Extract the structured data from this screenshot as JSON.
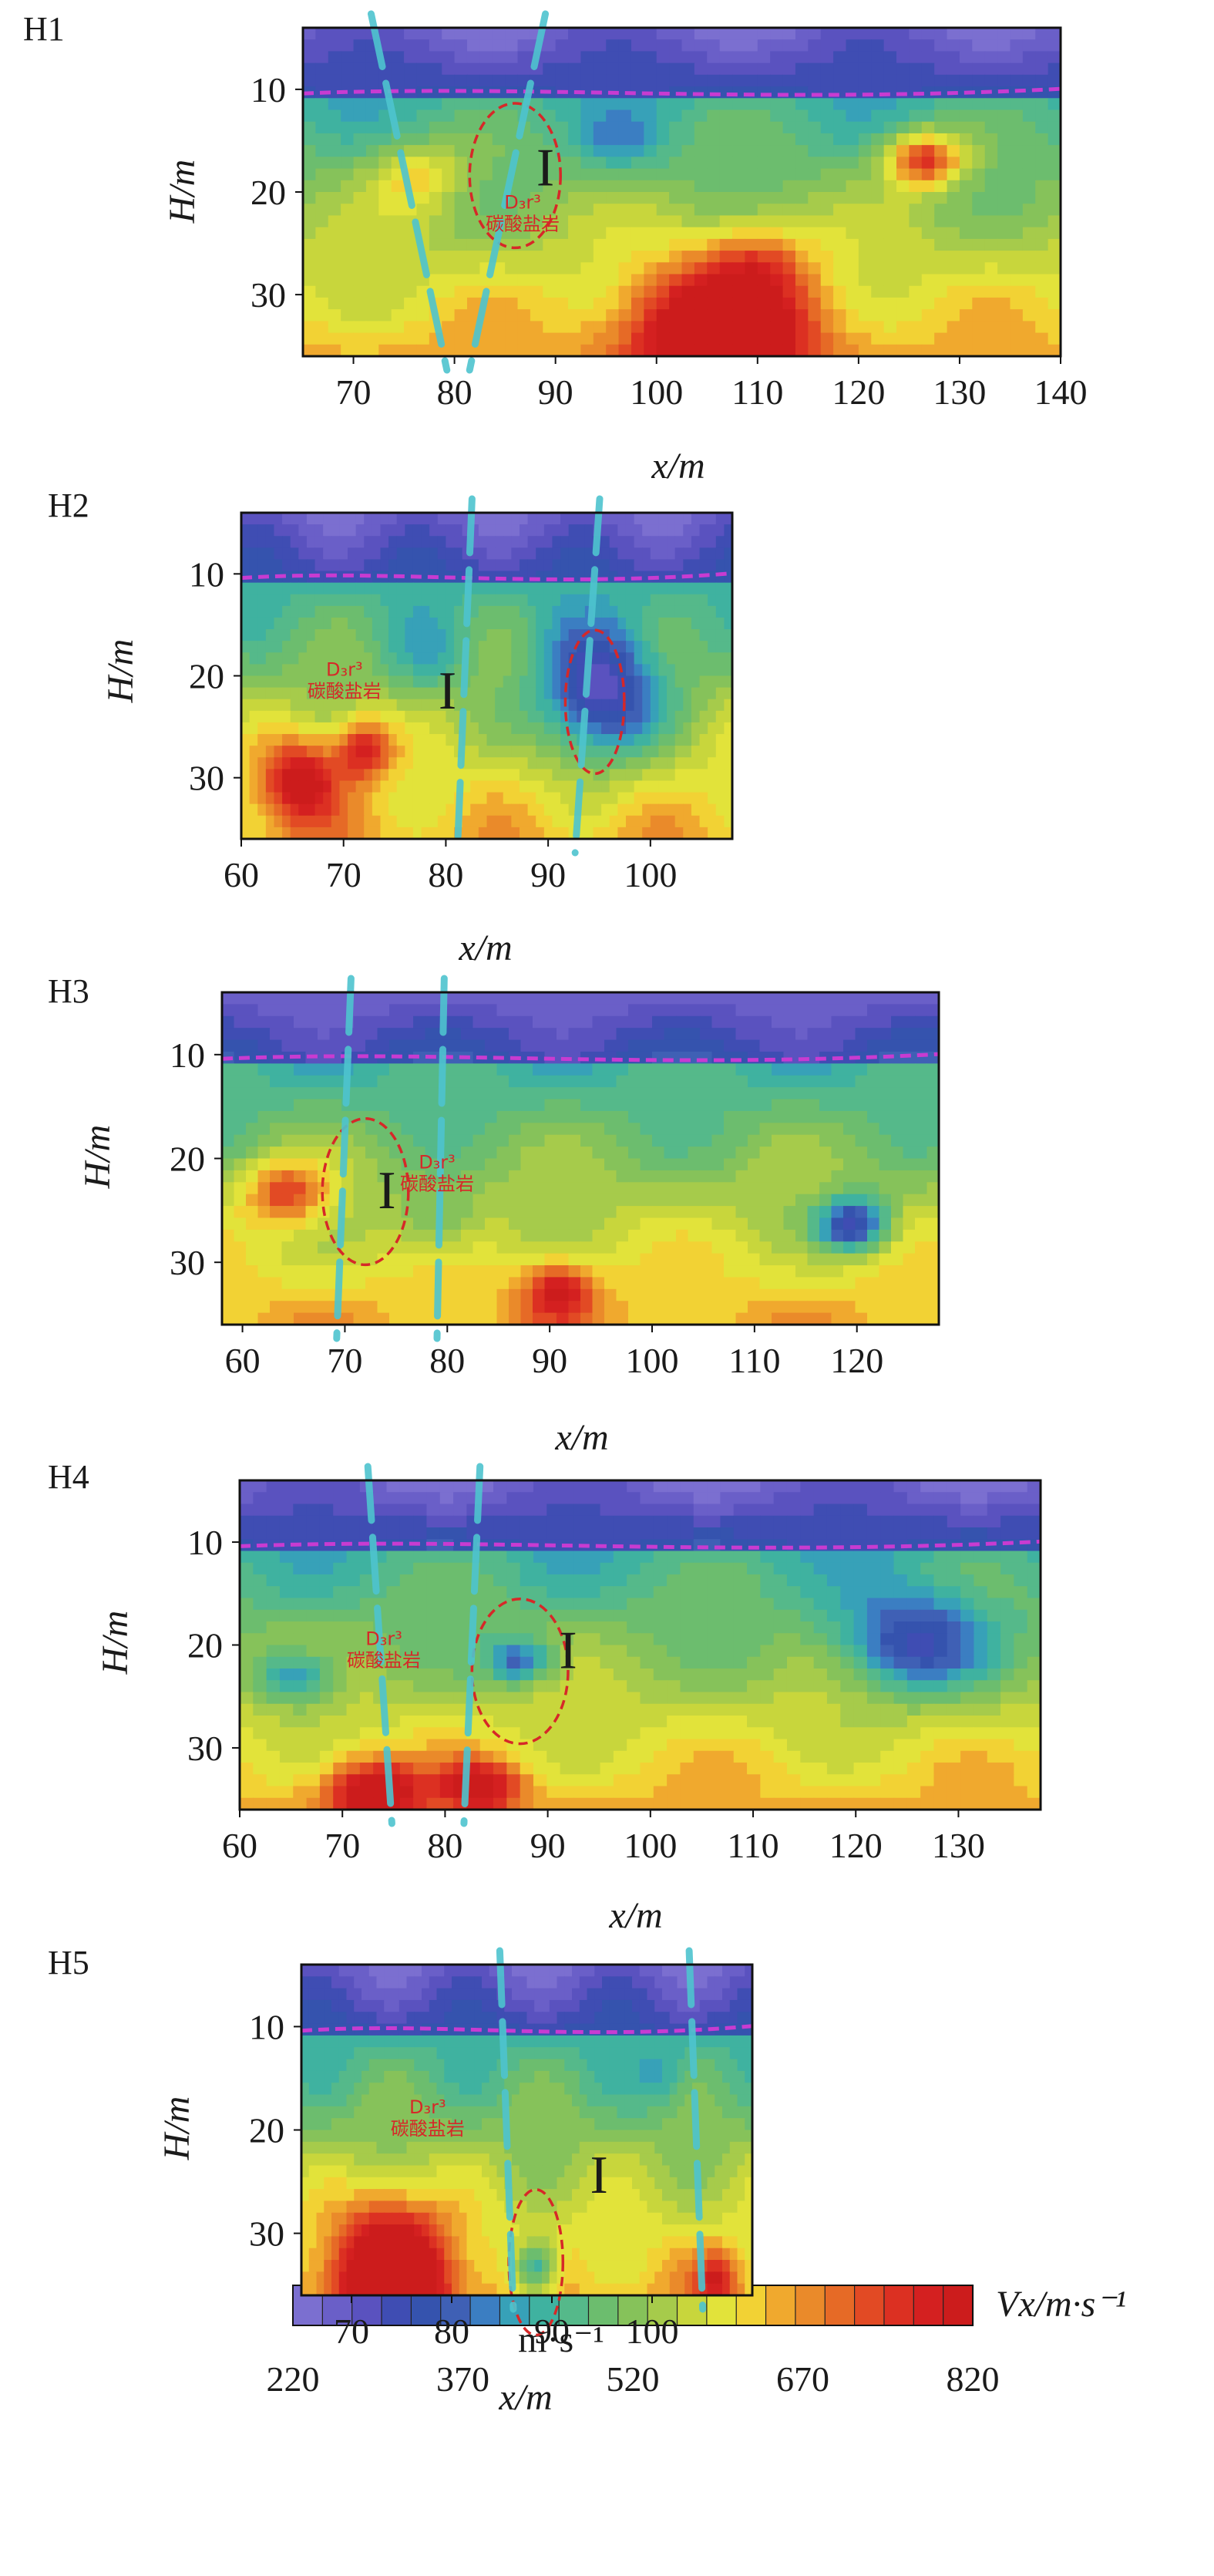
{
  "figure": {
    "zone_label": "I",
    "rock_label_line1": "D₃r³",
    "rock_label_line2": "碳酸盐岩",
    "overlay_label": "m·s⁻¹"
  },
  "colorbar": {
    "label": "Vx/m·s⁻¹",
    "ticks": [
      "220",
      "370",
      "520",
      "670",
      "820"
    ],
    "range": [
      220,
      820
    ],
    "colors": [
      "#7b6fd0",
      "#6a5fc8",
      "#5a52bf",
      "#3f4db3",
      "#3553ae",
      "#3f60b5",
      "#3b7ec2",
      "#37a1b8",
      "#3fb2a0",
      "#55b98a",
      "#6cbd6e",
      "#86c25a",
      "#a6cb4b",
      "#c8d63c",
      "#e2e33a",
      "#f2d234",
      "#f0a92e",
      "#ea8a2a",
      "#e66a26",
      "#e24a24",
      "#dc3022",
      "#d42020",
      "#cc1c1c"
    ]
  },
  "chart_data": [
    {
      "type": "heatmap",
      "panel": "H1",
      "title": "H1",
      "xlabel": "x/m",
      "ylabel": "H/m",
      "xlim": [
        65,
        140
      ],
      "ylim": [
        4,
        36
      ],
      "xticks": [
        "70",
        "80",
        "90",
        "100",
        "110",
        "120",
        "130",
        "140"
      ],
      "yticks": [
        "10",
        "20",
        "30"
      ],
      "zone": "I",
      "rock_label": "D₃r³ 碳酸盐岩"
    },
    {
      "type": "heatmap",
      "panel": "H2",
      "title": "H2",
      "xlabel": "x/m",
      "ylabel": "H/m",
      "xlim": [
        60,
        108
      ],
      "ylim": [
        4,
        36
      ],
      "xticks": [
        "60",
        "70",
        "80",
        "90",
        "100"
      ],
      "yticks": [
        "10",
        "20",
        "30"
      ],
      "zone": "I",
      "rock_label": "D₃r³ 碳酸盐岩"
    },
    {
      "type": "heatmap",
      "panel": "H3",
      "title": "H3",
      "xlabel": "x/m",
      "ylabel": "H/m",
      "xlim": [
        58,
        128
      ],
      "ylim": [
        4,
        36
      ],
      "xticks": [
        "60",
        "70",
        "80",
        "90",
        "100",
        "110",
        "120"
      ],
      "yticks": [
        "10",
        "20",
        "30"
      ],
      "zone": "I",
      "rock_label": "D₃r³ 碳酸盐岩"
    },
    {
      "type": "heatmap",
      "panel": "H4",
      "title": "H4",
      "xlabel": "x/m",
      "ylabel": "H/m",
      "xlim": [
        60,
        138
      ],
      "ylim": [
        4,
        36
      ],
      "xticks": [
        "60",
        "70",
        "80",
        "90",
        "100",
        "110",
        "120",
        "130"
      ],
      "yticks": [
        "10",
        "20",
        "30"
      ],
      "zone": "I",
      "rock_label": "D₃r³ 碳酸盐岩"
    },
    {
      "type": "heatmap",
      "panel": "H5",
      "title": "H5",
      "xlabel": "x/m",
      "ylabel": "H/m",
      "xlim": [
        65,
        110
      ],
      "ylim": [
        4,
        36
      ],
      "xticks": [
        "70",
        "80",
        "90",
        "100"
      ],
      "yticks": [
        "10",
        "20",
        "30"
      ],
      "zone": "I",
      "rock_label": "D₃r³ 碳酸盐岩"
    }
  ]
}
